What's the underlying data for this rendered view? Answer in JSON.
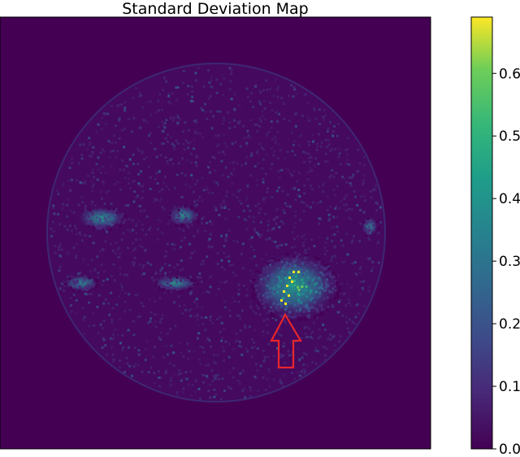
{
  "chart_data": {
    "type": "heatmap",
    "title": "Standard Deviation Map",
    "xlabel": "",
    "ylabel": "",
    "colormap": "viridis",
    "colorbar": {
      "range": [
        0.0,
        0.69
      ],
      "ticks": [
        0.0,
        0.1,
        0.2,
        0.3,
        0.4,
        0.5,
        0.6
      ],
      "tick_labels": [
        "0.0",
        "0.1",
        "0.2",
        "0.3",
        "0.4",
        "0.5",
        "0.6"
      ],
      "position": "right"
    },
    "background_value": 0.0,
    "disk_rim_value": 0.08,
    "regions": [
      {
        "label": "upper-left patch",
        "peak_value": 0.45
      },
      {
        "label": "upper-center patch",
        "peak_value": 0.3
      },
      {
        "label": "left patch",
        "peak_value": 0.28
      },
      {
        "label": "center-left patch",
        "peak_value": 0.3
      },
      {
        "label": "lower-right active region",
        "peak_value": 0.69
      },
      {
        "label": "right-edge patch",
        "peak_value": 0.35
      }
    ],
    "annotation": {
      "type": "arrow",
      "color": "#e8252b",
      "direction": "up",
      "target": "lower-right active region"
    },
    "grid": false
  }
}
